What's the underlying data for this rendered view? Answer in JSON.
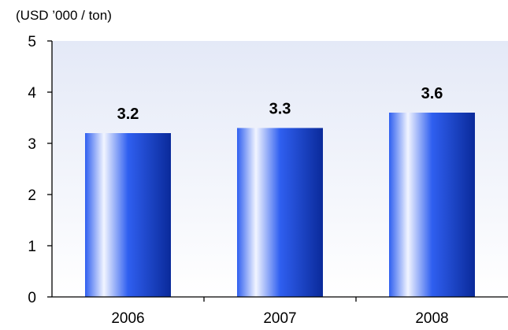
{
  "chart_data": {
    "type": "bar",
    "unit_label": "(USD ’000 / ton)",
    "categories": [
      "2006",
      "2007",
      "2008"
    ],
    "values": [
      3.2,
      3.3,
      3.6
    ],
    "value_labels": [
      "3.2",
      "3.3",
      "3.6"
    ],
    "y_ticks": [
      "0",
      "1",
      "2",
      "3",
      "4",
      "5"
    ],
    "ylim": [
      0,
      5
    ],
    "grid": false,
    "legend": "none",
    "bar_colors": {
      "dark": "#0a2a9a",
      "mid": "#2f5ff0",
      "highlight": "#f2f5ff"
    },
    "plot_background": {
      "top": "#e4e9f7",
      "bottom": "#ffffff"
    }
  }
}
